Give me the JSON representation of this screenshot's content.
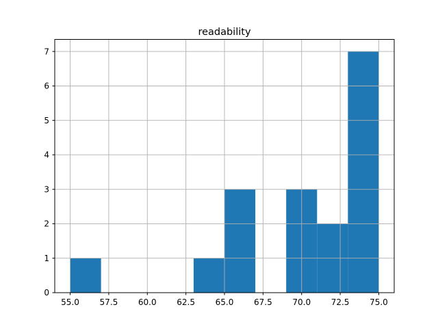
{
  "figure": {
    "background": "#ffffff"
  },
  "chart_data": {
    "type": "bar",
    "subtype": "histogram",
    "title": "readability",
    "xlabel": "",
    "ylabel": "",
    "bin_edges": [
      55,
      57,
      59,
      61,
      63,
      65,
      67,
      69,
      71,
      73,
      75
    ],
    "counts": [
      1,
      0,
      0,
      0,
      1,
      3,
      0,
      3,
      2,
      7
    ],
    "xlim": [
      54,
      76
    ],
    "ylim": [
      0,
      7.35
    ],
    "xticks": {
      "values": [
        55,
        57.5,
        60,
        62.5,
        65,
        67.5,
        70,
        72.5,
        75
      ],
      "labels": [
        "55.0",
        "57.5",
        "60.0",
        "62.5",
        "65.0",
        "67.5",
        "70.0",
        "72.5",
        "75.0"
      ]
    },
    "yticks": {
      "values": [
        0,
        1,
        2,
        3,
        4,
        5,
        6,
        7
      ],
      "labels": [
        "0",
        "1",
        "2",
        "3",
        "4",
        "5",
        "6",
        "7"
      ]
    },
    "grid": true,
    "grid_above_bars": true,
    "legend": null,
    "colors": {
      "bar_fill": "#1f77b4",
      "grid_line": "#b0b0b0",
      "axes_frame": "#000000",
      "tick_text": "#000000",
      "plot_background": "#ffffff"
    }
  }
}
